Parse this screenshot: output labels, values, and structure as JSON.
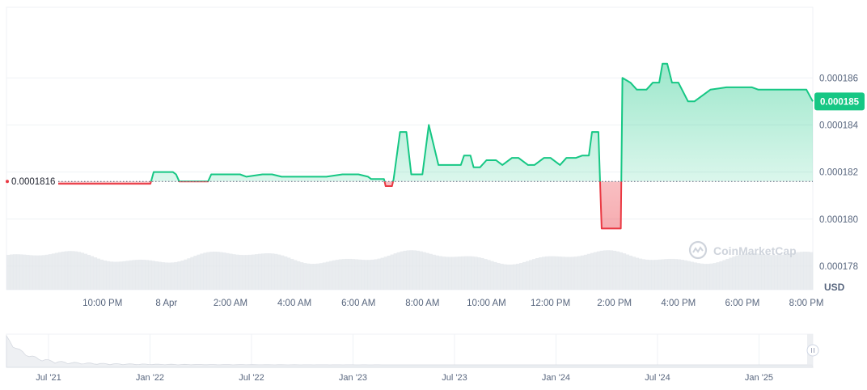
{
  "chart_data": {
    "type": "area",
    "unit_label": "USD",
    "reference_value": 0.0001816,
    "reference_label": "0.0001816",
    "current_price_label": "0.000185",
    "current_price": 0.000185,
    "ylim": [
      0.000177,
      0.000189
    ],
    "yticks": [
      {
        "value": 0.000186,
        "label": "0.000186"
      },
      {
        "value": 0.000184,
        "label": "0.000184"
      },
      {
        "value": 0.000182,
        "label": "0.000182"
      },
      {
        "value": 0.00018,
        "label": "0.000180"
      },
      {
        "value": 0.000178,
        "label": "0.000178"
      }
    ],
    "xlim": [
      19.0,
      44.2
    ],
    "xticks": [
      {
        "x": 22.0,
        "label": "10:00 PM"
      },
      {
        "x": 24.0,
        "label": "8 Apr"
      },
      {
        "x": 26.0,
        "label": "2:00 AM"
      },
      {
        "x": 28.0,
        "label": "4:00 AM"
      },
      {
        "x": 30.0,
        "label": "6:00 AM"
      },
      {
        "x": 32.0,
        "label": "8:00 AM"
      },
      {
        "x": 34.0,
        "label": "10:00 AM"
      },
      {
        "x": 36.0,
        "label": "12:00 PM"
      },
      {
        "x": 38.0,
        "label": "2:00 PM"
      },
      {
        "x": 40.0,
        "label": "4:00 PM"
      },
      {
        "x": 42.0,
        "label": "6:00 PM"
      },
      {
        "x": 44.0,
        "label": "8:00 PM"
      }
    ],
    "series": [
      {
        "x": [
          20.5,
          21.0,
          21.5,
          22.0,
          22.5,
          23.0,
          23.5,
          23.6,
          24.0,
          24.2,
          24.3,
          24.4,
          24.6,
          25.1,
          25.3,
          25.4,
          26.0,
          26.3,
          26.5,
          27.0,
          27.3,
          27.6,
          28.0,
          28.5,
          29.0,
          29.5,
          30.0,
          30.3,
          30.4,
          30.6,
          30.8,
          30.85,
          31.05,
          31.1,
          31.3,
          31.35,
          31.5,
          31.65,
          31.7,
          32.0,
          32.2,
          32.5,
          32.8,
          33.0,
          33.2,
          33.3,
          33.5,
          33.6,
          33.8,
          34.0,
          34.3,
          34.5,
          34.8,
          35.0,
          35.3,
          35.5,
          35.8,
          36.0,
          36.3,
          36.5,
          36.8,
          37.0,
          37.2,
          37.3,
          37.5,
          37.6,
          37.75,
          37.8,
          38.2,
          38.25,
          38.5,
          38.7,
          39.0,
          39.2,
          39.4,
          39.5,
          39.65,
          39.8,
          40.0,
          40.3,
          40.5,
          41.0,
          41.5,
          42.0,
          42.3,
          42.5,
          43.0,
          43.5,
          44.0,
          44.2
        ],
        "y": [
          0.0001815,
          0.0001815,
          0.0001815,
          0.0001815,
          0.0001815,
          0.0001815,
          0.0001815,
          0.000182,
          0.000182,
          0.000182,
          0.0001819,
          0.0001816,
          0.0001816,
          0.0001816,
          0.0001816,
          0.0001819,
          0.0001819,
          0.0001819,
          0.0001818,
          0.0001819,
          0.0001819,
          0.0001818,
          0.0001818,
          0.0001818,
          0.0001818,
          0.0001819,
          0.0001819,
          0.0001818,
          0.0001817,
          0.0001817,
          0.0001817,
          0.0001814,
          0.0001814,
          0.0001817,
          0.0001837,
          0.0001837,
          0.0001837,
          0.0001819,
          0.0001819,
          0.0001819,
          0.000184,
          0.0001823,
          0.0001823,
          0.0001823,
          0.0001823,
          0.0001827,
          0.0001827,
          0.0001822,
          0.0001822,
          0.0001825,
          0.0001825,
          0.0001823,
          0.0001826,
          0.0001826,
          0.0001823,
          0.0001823,
          0.0001826,
          0.0001826,
          0.0001823,
          0.0001826,
          0.0001826,
          0.0001827,
          0.0001827,
          0.0001837,
          0.0001837,
          0.0001796,
          0.0001796,
          0.0001796,
          0.0001796,
          0.000186,
          0.0001858,
          0.0001855,
          0.0001855,
          0.0001858,
          0.0001858,
          0.0001866,
          0.0001866,
          0.0001858,
          0.0001858,
          0.000185,
          0.000185,
          0.0001855,
          0.0001856,
          0.0001856,
          0.0001856,
          0.0001855,
          0.0001855,
          0.0001855,
          0.0001855,
          0.000185
        ]
      }
    ],
    "navigator_ticks": [
      "Jul '21",
      "Jan '22",
      "Jul '22",
      "Jan '23",
      "Jul '23",
      "Jan '24",
      "Jul '24",
      "Jan '25"
    ],
    "colors": {
      "up": "#16c784",
      "down": "#ea3943",
      "grid": "#eff2f5",
      "volume": "#e2e5ea",
      "badge": "#16c784"
    },
    "watermark": "CoinMarketCap",
    "grid": true
  }
}
